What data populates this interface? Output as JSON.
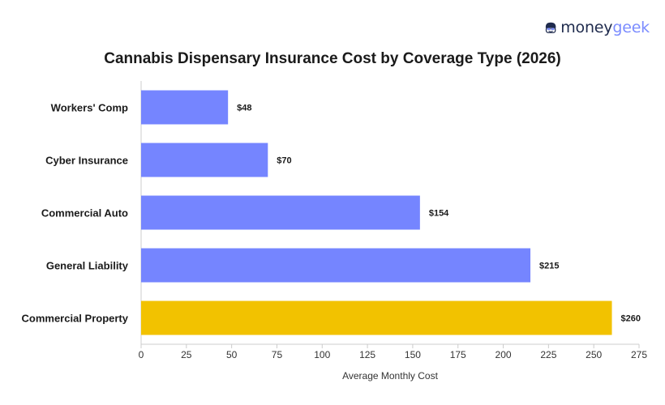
{
  "brand": {
    "name_part1": "money",
    "name_part2": "geek"
  },
  "colors": {
    "bar": "#7585ff",
    "highlight": "#f2c200",
    "axis": "#cccccc",
    "text": "#1a1a1a"
  },
  "chart_data": {
    "type": "bar",
    "orientation": "horizontal",
    "title": "Cannabis Dispensary Insurance Cost by Coverage Type (2026)",
    "xlabel": "Average Monthly Cost",
    "ylabel": "",
    "categories": [
      "Workers' Comp",
      "Cyber Insurance",
      "Commercial Auto",
      "General Liability",
      "Commercial Property"
    ],
    "values": [
      48,
      70,
      154,
      215,
      260
    ],
    "value_labels": [
      "$48",
      "$70",
      "$154",
      "$215",
      "$260"
    ],
    "highlighted": [
      false,
      false,
      false,
      false,
      true
    ],
    "xlim": [
      0,
      275
    ],
    "xticks": [
      0,
      25,
      50,
      75,
      100,
      125,
      150,
      175,
      200,
      225,
      250,
      275
    ],
    "grid": false,
    "legend": "none"
  }
}
